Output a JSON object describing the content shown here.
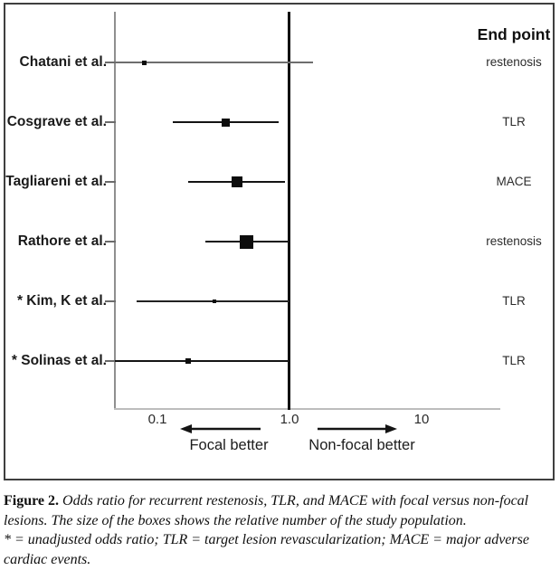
{
  "chart_data": {
    "type": "forest_plot",
    "title": "",
    "x_axis": {
      "scale": "log",
      "ticks": [
        "0.1",
        "1.0",
        "10"
      ],
      "tick_values": [
        0.1,
        1.0,
        10
      ],
      "range_min": 0.047,
      "range_max": 40,
      "reference_line_value": 1.0
    },
    "direction_labels": {
      "left": "Focal better",
      "right": "Non-focal better"
    },
    "endpoint_header": "End point",
    "legend_note": "box size = relative study population",
    "studies": [
      {
        "label": "Chatani et al.",
        "endpoint": "restenosis",
        "or": 0.08,
        "ci_low": 0.04,
        "ci_high": 1.5,
        "box_size": 5,
        "line_width": 1.2,
        "line_color": "#6e6e6e"
      },
      {
        "label": "Cosgrave et al.",
        "endpoint": "TLR",
        "or": 0.33,
        "ci_low": 0.13,
        "ci_high": 0.83,
        "box_size": 9,
        "line_width": 2,
        "line_color": "#141414"
      },
      {
        "label": "Tagliareni et al.",
        "endpoint": "MACE",
        "or": 0.4,
        "ci_low": 0.17,
        "ci_high": 0.92,
        "box_size": 12,
        "line_width": 2,
        "line_color": "#141414"
      },
      {
        "label": "Rathore et al.",
        "endpoint": "restenosis",
        "or": 0.47,
        "ci_low": 0.23,
        "ci_high": 1.02,
        "box_size": 15,
        "line_width": 2,
        "line_color": "#141414"
      },
      {
        "label": "* Kim, K et al.",
        "endpoint": "TLR",
        "or": 0.27,
        "ci_low": 0.07,
        "ci_high": 1.0,
        "box_size": 4,
        "line_width": 1.3,
        "line_color": "#222222"
      },
      {
        "label": "* Solinas et al.",
        "endpoint": "TLR",
        "or": 0.17,
        "ci_low": 0.04,
        "ci_high": 1.0,
        "box_size": 6,
        "line_width": 1.6,
        "line_color": "#141414"
      }
    ],
    "colors": {
      "marker": "#0d0d0d",
      "reference_line": "#111111",
      "y_axis": "#8f8f8f",
      "x_axis": "#bdbdbd"
    }
  },
  "caption": {
    "label": "Figure 2.",
    "line1": "Odds ratio for recurrent restenosis, TLR, and MACE with focal versus non-focal",
    "line2": "lesions. The size of the boxes shows the relative number of the study population.",
    "line3": "* = unadjusted odds ratio; TLR = target lesion revascularization; MACE = major adverse",
    "line4": "cardiac events."
  }
}
